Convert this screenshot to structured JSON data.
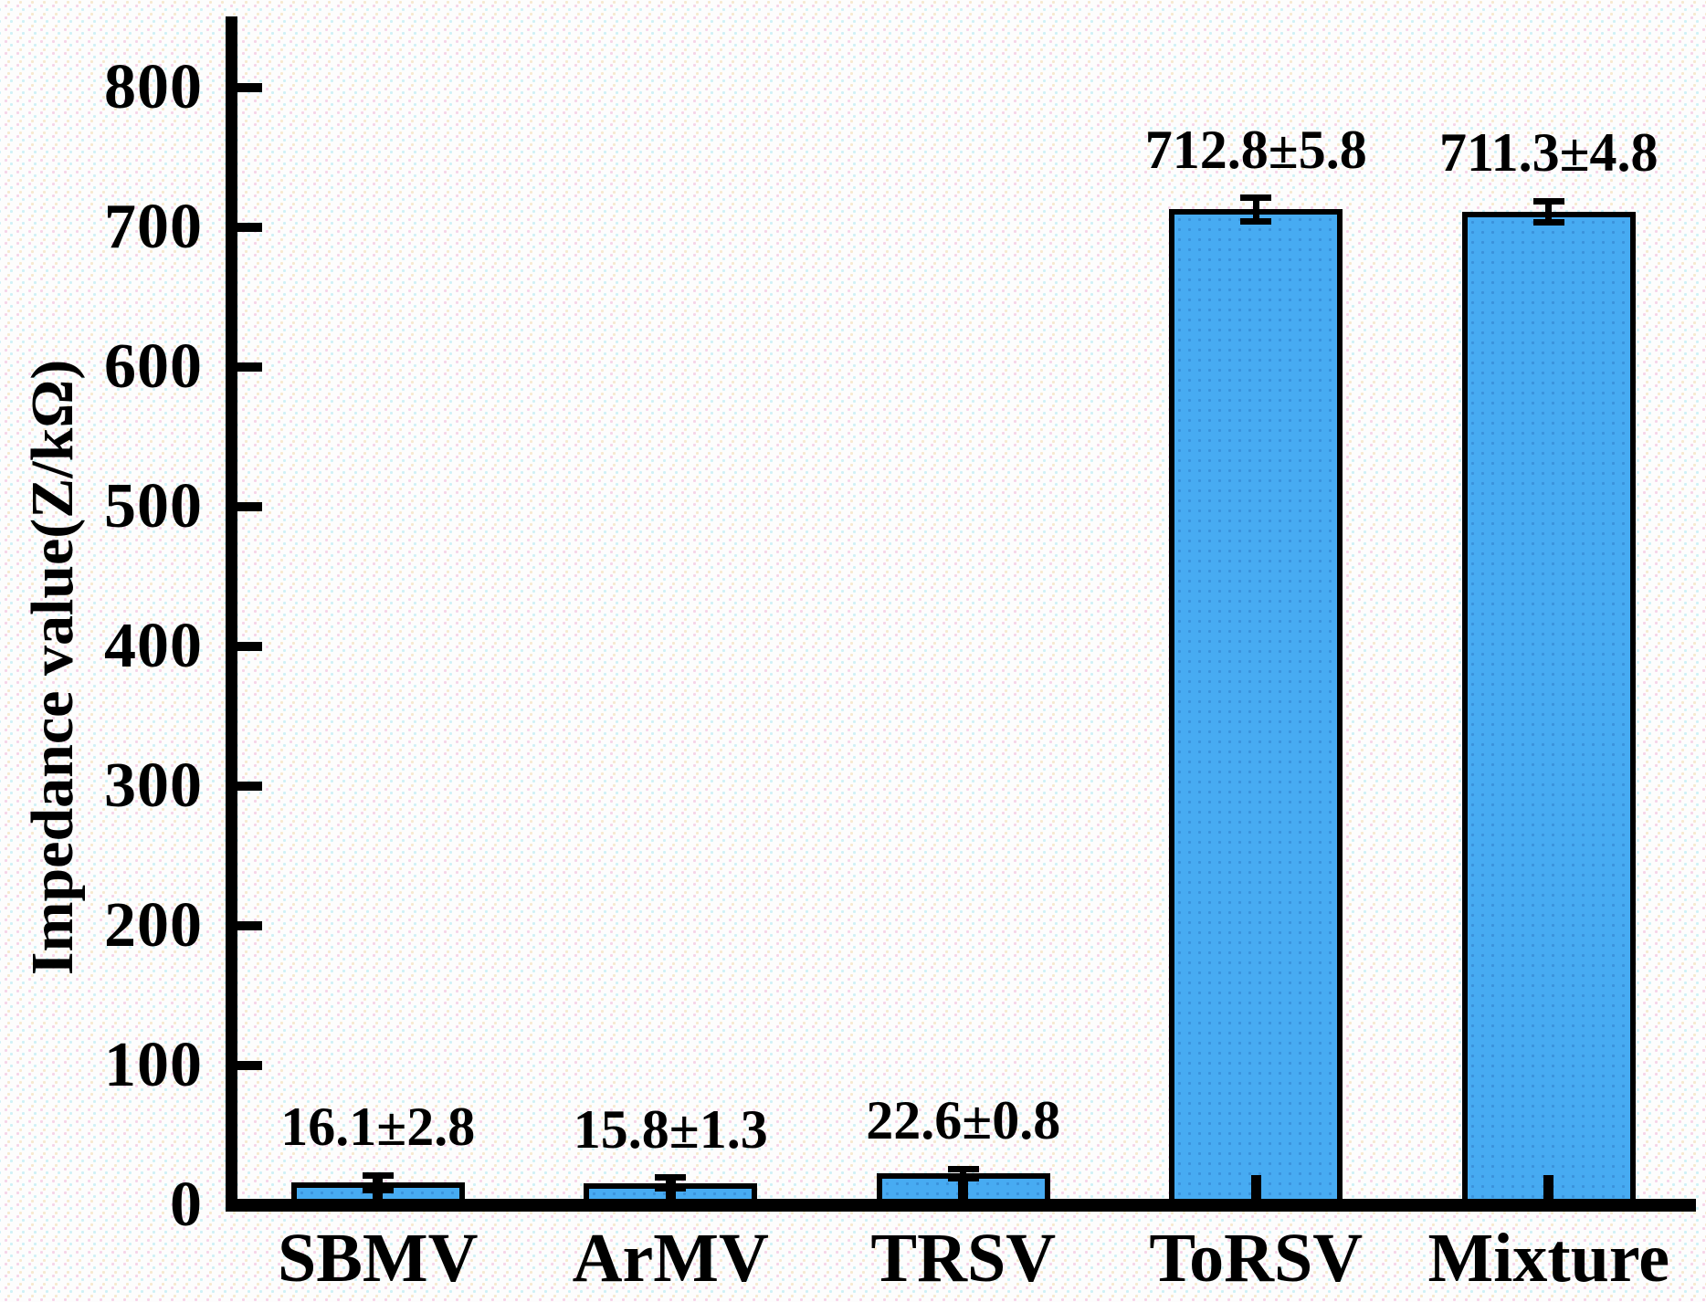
{
  "chart_data": {
    "type": "bar",
    "title": "",
    "categories": [
      "SBMV",
      "ArMV",
      "TRSV",
      "ToRSV",
      "Mixture"
    ],
    "values": [
      16.1,
      15.8,
      22.6,
      712.8,
      711.3
    ],
    "errors": [
      2.8,
      1.3,
      0.8,
      5.8,
      4.8
    ],
    "bar_labels": [
      "16.1±2.8",
      "15.8±1.3",
      "22.6±0.8",
      "712.8±5.8",
      "711.3±4.8"
    ],
    "xlabel": "",
    "ylabel": "Impedance value(Z/kΩ)",
    "ylim": [
      0,
      800
    ],
    "ytick_step": 100,
    "ytick_labels": [
      "0",
      "100",
      "200",
      "300",
      "400",
      "500",
      "600",
      "700",
      "800"
    ],
    "grid": false,
    "legend_position": "none",
    "colors": {
      "bar_fill": "#47ABF2",
      "bar_dot": "#3B92DB",
      "bar_border": "#000000",
      "axis": "#000000",
      "text": "#000000"
    }
  }
}
